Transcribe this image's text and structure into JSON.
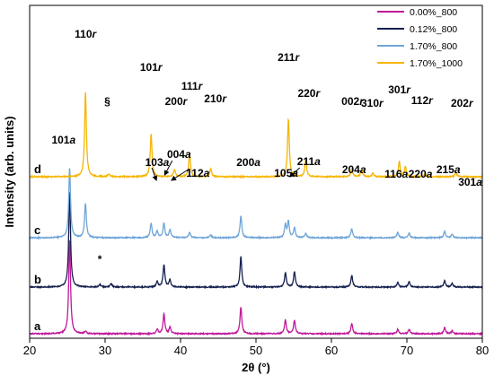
{
  "chart_data": {
    "type": "line",
    "xlabel": "2θ (°)",
    "ylabel": "Intensity (arb. units)",
    "xlim": [
      20,
      80
    ],
    "x_ticks": [
      "20",
      "30",
      "40",
      "50",
      "60",
      "70",
      "80"
    ],
    "y_ticks_shown": false,
    "legend_position": "top-right",
    "series": [
      {
        "name": "0.00%_800",
        "label": "a",
        "color": "#c0189a",
        "offset": 0,
        "peaks": [
          [
            25.3,
            105
          ],
          [
            27.4,
            3
          ],
          [
            36.9,
            5
          ],
          [
            37.8,
            22
          ],
          [
            38.6,
            7
          ],
          [
            48.0,
            30
          ],
          [
            53.9,
            15
          ],
          [
            55.1,
            15
          ],
          [
            62.7,
            11
          ],
          [
            68.8,
            5
          ],
          [
            70.3,
            5
          ],
          [
            75.0,
            7
          ],
          [
            76.0,
            3
          ]
        ]
      },
      {
        "name": "0.12%_800",
        "label": "b",
        "color": "#14204e",
        "offset": 52,
        "peaks": [
          [
            25.3,
            107
          ],
          [
            29.3,
            3
          ],
          [
            30.8,
            4
          ],
          [
            36.9,
            6
          ],
          [
            37.8,
            25
          ],
          [
            38.6,
            8
          ],
          [
            48.0,
            34
          ],
          [
            53.9,
            16
          ],
          [
            55.1,
            17
          ],
          [
            62.7,
            13
          ],
          [
            68.8,
            5
          ],
          [
            70.3,
            6
          ],
          [
            75.0,
            7
          ],
          [
            76.0,
            4
          ]
        ]
      },
      {
        "name": "1.70%_800",
        "label": "c",
        "color": "#6fa5d8",
        "offset": 107,
        "peaks": [
          [
            25.3,
            78
          ],
          [
            27.4,
            38
          ],
          [
            36.1,
            16
          ],
          [
            36.9,
            7
          ],
          [
            37.8,
            16
          ],
          [
            38.6,
            9
          ],
          [
            41.2,
            6
          ],
          [
            44.0,
            3
          ],
          [
            48.0,
            24
          ],
          [
            53.9,
            14
          ],
          [
            54.3,
            18
          ],
          [
            55.1,
            11
          ],
          [
            56.6,
            5
          ],
          [
            62.7,
            10
          ],
          [
            68.8,
            6
          ],
          [
            70.3,
            5
          ],
          [
            75.0,
            7
          ],
          [
            76.0,
            4
          ]
        ]
      },
      {
        "name": "1.70%_1000",
        "label": "d",
        "color": "#f6b500",
        "offset": 175,
        "peaks": [
          [
            27.4,
            94
          ],
          [
            30.5,
            3
          ],
          [
            36.1,
            48
          ],
          [
            39.2,
            8
          ],
          [
            41.2,
            26
          ],
          [
            44.0,
            9
          ],
          [
            54.3,
            64
          ],
          [
            56.6,
            19
          ],
          [
            62.7,
            9
          ],
          [
            64.0,
            8
          ],
          [
            65.5,
            4
          ],
          [
            69.0,
            17
          ],
          [
            69.8,
            11
          ],
          [
            72.4,
            3
          ],
          [
            76.5,
            5
          ]
        ]
      }
    ],
    "curve_labels": [
      "a",
      "b",
      "c",
      "d"
    ],
    "annotations": {
      "d": [
        {
          "text": "110r",
          "x": 27.4
        },
        {
          "text": "§",
          "x": 30.3
        },
        {
          "text": "101r",
          "x": 36.1
        },
        {
          "text": "200r",
          "x": 39.4
        },
        {
          "text": "111r",
          "x": 41.5
        },
        {
          "text": "210r",
          "x": 44.6
        },
        {
          "text": "211r",
          "x": 54.3
        },
        {
          "text": "220r",
          "x": 57.0
        },
        {
          "text": "002r",
          "x": 62.8
        },
        {
          "text": "310r",
          "x": 65.4
        },
        {
          "text": "301r",
          "x": 69.0
        },
        {
          "text": "112r",
          "x": 72.0
        },
        {
          "text": "202r",
          "x": 77.3
        }
      ],
      "c": [
        {
          "text": "101a",
          "x": 24.5
        },
        {
          "text": "103a",
          "x": 36.9
        },
        {
          "text": "004a",
          "x": 39.8
        },
        {
          "text": "112a",
          "x": 42.3
        },
        {
          "text": "200a",
          "x": 49.0
        },
        {
          "text": "105a",
          "x": 54.0
        },
        {
          "text": "211a",
          "x": 57.0
        },
        {
          "text": "204a",
          "x": 63.0
        },
        {
          "text": "116a",
          "x": 68.6
        },
        {
          "text": "220a",
          "x": 71.8
        },
        {
          "text": "215a",
          "x": 75.5
        },
        {
          "text": "301a",
          "x": 78.4
        }
      ],
      "b": [
        {
          "text": "*",
          "x": 29.3
        }
      ]
    }
  }
}
